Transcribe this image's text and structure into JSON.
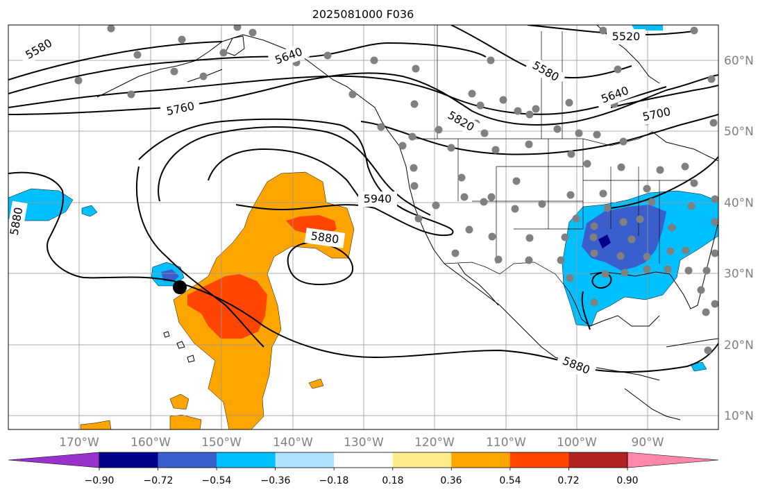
{
  "title": "2025081000 F036",
  "lat_labels": [
    "60°N",
    "50°N",
    "40°N",
    "30°N",
    "20°N",
    "10°N"
  ],
  "lon_labels": [
    "170°W",
    "160°W",
    "150°W",
    "140°W",
    "130°W",
    "120°W",
    "110°W",
    "100°W",
    "90°W"
  ],
  "contour_labels": [
    "5580",
    "5640",
    "5580",
    "5520",
    "5640",
    "5700",
    "5760",
    "5820",
    "5940",
    "5880",
    "5880",
    "5880"
  ],
  "colorbar": {
    "ticks": [
      "−0.90",
      "−0.72",
      "−0.54",
      "−0.36",
      "−0.18",
      "0.18",
      "0.36",
      "0.54",
      "0.72",
      "0.90"
    ],
    "colors": [
      "#9932cc",
      "#00008b",
      "#3a5fcd",
      "#00bfff",
      "#b0e2ff",
      "#ffffff",
      "#ffec8b",
      "#ffa500",
      "#ff4500",
      "#b22222",
      "#ff88aa"
    ]
  },
  "colors": {
    "neg_light": "#00bfff",
    "neg_mid": "#3a5fcd",
    "neg_dark": "#00008b",
    "pos_light": "#ffa500",
    "pos_mid": "#ff4500",
    "station": "#808080"
  }
}
